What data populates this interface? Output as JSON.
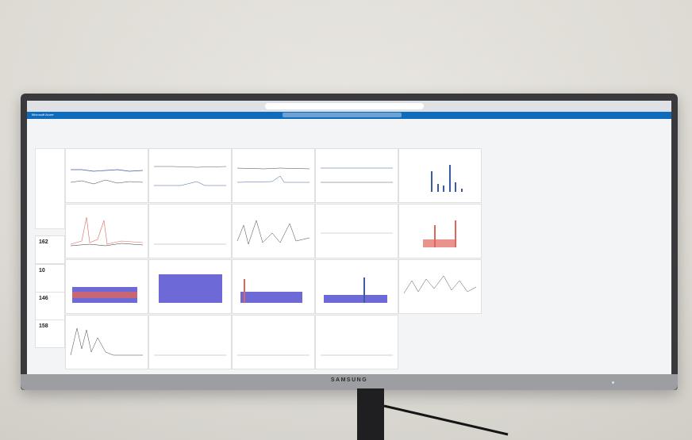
{
  "monitor": {
    "brand": "SAMSUNG"
  },
  "screen": {
    "browser_url": "",
    "app_title": "Microsoft Azure",
    "search_placeholder": "",
    "dashboard_title": "",
    "toolbar_text": "",
    "filters_text": ""
  },
  "sidebar": {
    "items": [
      "",
      "",
      "",
      "",
      "",
      "",
      "",
      "",
      "",
      "",
      "",
      "",
      ""
    ]
  },
  "metrics": [
    {
      "title": "",
      "value": "162"
    },
    {
      "title": "",
      "value": "10"
    },
    {
      "title": "",
      "value": "146"
    },
    {
      "title": "",
      "value": "158"
    }
  ],
  "tiles": [
    {
      "title": ""
    },
    {
      "title": ""
    },
    {
      "title": ""
    },
    {
      "title": ""
    },
    {
      "title": ""
    },
    {
      "title": ""
    },
    {
      "title": ""
    },
    {
      "title": ""
    },
    {
      "title": ""
    },
    {
      "title": ""
    },
    {
      "title": ""
    },
    {
      "title": ""
    },
    {
      "title": ""
    },
    {
      "title": ""
    },
    {
      "title": ""
    },
    {
      "title": ""
    },
    {
      "title": ""
    },
    {
      "title": ""
    },
    {
      "title": ""
    }
  ],
  "colors": {
    "app_bar": "#0f6cbd",
    "line_blue": "#3b5ba5",
    "bar_red": "#e0655b",
    "bar_purple": "#6d6ad7",
    "wall": "#e4e1da",
    "bezel": "#3a3a3c"
  }
}
